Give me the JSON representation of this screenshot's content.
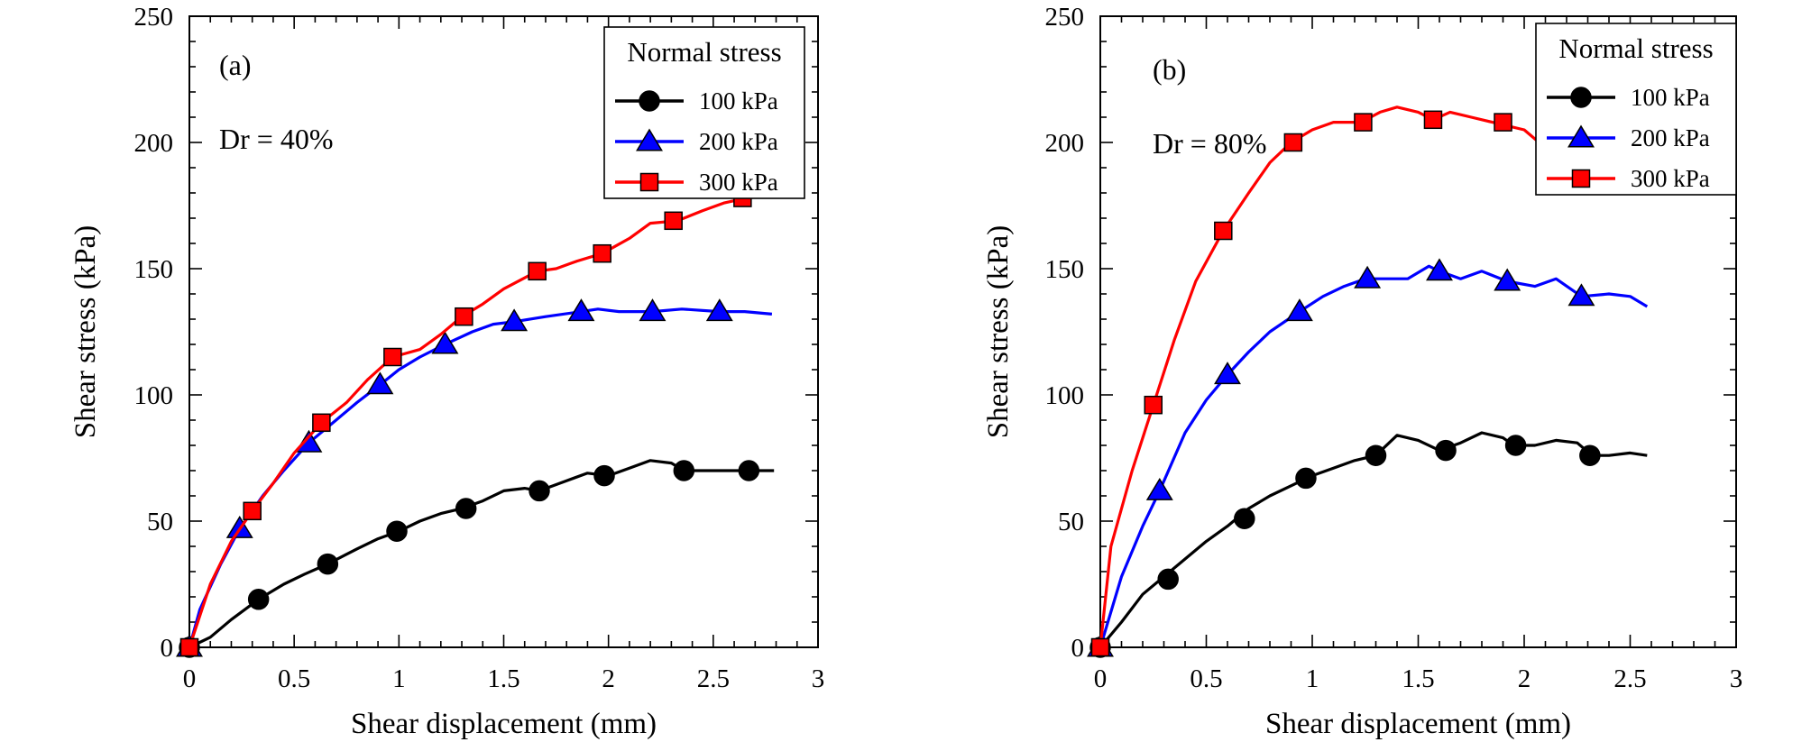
{
  "chart_data": [
    {
      "type": "line",
      "panel_label": "(a)",
      "annotation": "Dr = 40%",
      "xlabel": "Shear displacement (mm)",
      "ylabel": "Shear stress (kPa)",
      "xlim": [
        0,
        3
      ],
      "ylim": [
        0,
        250
      ],
      "xticks": [
        0,
        0.5,
        1,
        1.5,
        2,
        2.5,
        3
      ],
      "xtick_labels": [
        "0",
        "0.5",
        "1",
        "1.5",
        "2",
        "2.5",
        "3"
      ],
      "yticks": [
        0,
        50,
        100,
        150,
        200,
        250
      ],
      "ytick_labels": [
        "0",
        "50",
        "100",
        "150",
        "200",
        "250"
      ],
      "legend": {
        "title": "Normal stress",
        "placement": "top-right"
      },
      "series": [
        {
          "name": "100 kPa",
          "color": "#000000",
          "marker": "circle",
          "line": [
            [
              0,
              0
            ],
            [
              0.1,
              4
            ],
            [
              0.2,
              11
            ],
            [
              0.33,
              19
            ],
            [
              0.45,
              25
            ],
            [
              0.55,
              29
            ],
            [
              0.66,
              33
            ],
            [
              0.8,
              39
            ],
            [
              0.9,
              43
            ],
            [
              1.0,
              46
            ],
            [
              1.1,
              50
            ],
            [
              1.2,
              53
            ],
            [
              1.3,
              55
            ],
            [
              1.4,
              58
            ],
            [
              1.5,
              62
            ],
            [
              1.6,
              63
            ],
            [
              1.67,
              62
            ],
            [
              1.8,
              66
            ],
            [
              1.9,
              69
            ],
            [
              2.0,
              68
            ],
            [
              2.1,
              71
            ],
            [
              2.2,
              74
            ],
            [
              2.3,
              73
            ],
            [
              2.36,
              70
            ],
            [
              2.45,
              70
            ],
            [
              2.55,
              70
            ],
            [
              2.67,
              70
            ],
            [
              2.79,
              70
            ]
          ],
          "markers": [
            [
              0,
              0
            ],
            [
              0.33,
              19
            ],
            [
              0.66,
              33
            ],
            [
              0.99,
              46
            ],
            [
              1.32,
              55
            ],
            [
              1.67,
              62
            ],
            [
              1.98,
              68
            ],
            [
              2.36,
              70
            ],
            [
              2.67,
              70
            ]
          ]
        },
        {
          "name": "200 kPa",
          "color": "#0000ff",
          "marker": "triangle",
          "line": [
            [
              0,
              0
            ],
            [
              0.05,
              15
            ],
            [
              0.15,
              33
            ],
            [
              0.24,
              47
            ],
            [
              0.35,
              60
            ],
            [
              0.45,
              70
            ],
            [
              0.57,
              81
            ],
            [
              0.7,
              90
            ],
            [
              0.8,
              97
            ],
            [
              0.91,
              104
            ],
            [
              1.0,
              110
            ],
            [
              1.1,
              115
            ],
            [
              1.22,
              120
            ],
            [
              1.35,
              125
            ],
            [
              1.45,
              128
            ],
            [
              1.55,
              129
            ],
            [
              1.7,
              131
            ],
            [
              1.87,
              133
            ],
            [
              1.95,
              134
            ],
            [
              2.05,
              133
            ],
            [
              2.21,
              133
            ],
            [
              2.35,
              134
            ],
            [
              2.53,
              133
            ],
            [
              2.65,
              133
            ],
            [
              2.78,
              132
            ]
          ],
          "markers": [
            [
              0,
              0
            ],
            [
              0.24,
              47
            ],
            [
              0.57,
              81
            ],
            [
              0.91,
              104
            ],
            [
              1.22,
              120
            ],
            [
              1.55,
              129
            ],
            [
              1.87,
              133
            ],
            [
              2.21,
              133
            ],
            [
              2.53,
              133
            ]
          ]
        },
        {
          "name": "300 kPa",
          "color": "#ff0000",
          "marker": "square",
          "line": [
            [
              0,
              0
            ],
            [
              0.1,
              25
            ],
            [
              0.2,
              42
            ],
            [
              0.3,
              54
            ],
            [
              0.4,
              65
            ],
            [
              0.5,
              77
            ],
            [
              0.63,
              89
            ],
            [
              0.75,
              97
            ],
            [
              0.85,
              106
            ],
            [
              0.97,
              115
            ],
            [
              1.1,
              118
            ],
            [
              1.2,
              124
            ],
            [
              1.3,
              131
            ],
            [
              1.4,
              136
            ],
            [
              1.5,
              142
            ],
            [
              1.66,
              149
            ],
            [
              1.75,
              150
            ],
            [
              1.85,
              153
            ],
            [
              1.97,
              156
            ],
            [
              2.1,
              162
            ],
            [
              2.2,
              168
            ],
            [
              2.33,
              169
            ],
            [
              2.45,
              173
            ],
            [
              2.55,
              176
            ],
            [
              2.66,
              178
            ],
            [
              2.78,
              179
            ]
          ],
          "markers": [
            [
              0,
              0
            ],
            [
              0.3,
              54
            ],
            [
              0.63,
              89
            ],
            [
              0.97,
              115
            ],
            [
              1.31,
              131
            ],
            [
              1.66,
              149
            ],
            [
              1.97,
              156
            ],
            [
              2.31,
              169
            ],
            [
              2.64,
              178
            ]
          ]
        }
      ]
    },
    {
      "type": "line",
      "panel_label": "(b)",
      "annotation": "Dr = 80%",
      "xlabel": "Shear displacement (mm)",
      "ylabel": "Shear stress (kPa)",
      "xlim": [
        0,
        3
      ],
      "ylim": [
        0,
        250
      ],
      "xticks": [
        0,
        0.5,
        1,
        1.5,
        2,
        2.5,
        3
      ],
      "xtick_labels": [
        "0",
        "0.5",
        "1",
        "1.5",
        "2",
        "2.5",
        "3"
      ],
      "yticks": [
        0,
        50,
        100,
        150,
        200,
        250
      ],
      "ytick_labels": [
        "0",
        "50",
        "100",
        "150",
        "200",
        "250"
      ],
      "legend": {
        "title": "Normal stress",
        "placement": "top-right"
      },
      "series": [
        {
          "name": "100 kPa",
          "color": "#000000",
          "marker": "circle",
          "line": [
            [
              0,
              0
            ],
            [
              0.1,
              10
            ],
            [
              0.2,
              21
            ],
            [
              0.3,
              28
            ],
            [
              0.4,
              35
            ],
            [
              0.5,
              42
            ],
            [
              0.6,
              48
            ],
            [
              0.7,
              55
            ],
            [
              0.8,
              60
            ],
            [
              0.9,
              64
            ],
            [
              1.0,
              68
            ],
            [
              1.1,
              71
            ],
            [
              1.2,
              74
            ],
            [
              1.3,
              76
            ],
            [
              1.4,
              84
            ],
            [
              1.5,
              82
            ],
            [
              1.6,
              78
            ],
            [
              1.7,
              81
            ],
            [
              1.8,
              85
            ],
            [
              1.9,
              83
            ],
            [
              1.95,
              80
            ],
            [
              2.05,
              80
            ],
            [
              2.15,
              82
            ],
            [
              2.25,
              81
            ],
            [
              2.32,
              76
            ],
            [
              2.4,
              76
            ],
            [
              2.5,
              77
            ],
            [
              2.58,
              76
            ]
          ],
          "markers": [
            [
              0,
              0
            ],
            [
              0.32,
              27
            ],
            [
              0.68,
              51
            ],
            [
              0.97,
              67
            ],
            [
              1.3,
              76
            ],
            [
              1.63,
              78
            ],
            [
              1.96,
              80
            ],
            [
              2.31,
              76
            ]
          ]
        },
        {
          "name": "200 kPa",
          "color": "#0000ff",
          "marker": "triangle",
          "line": [
            [
              0,
              0
            ],
            [
              0.1,
              28
            ],
            [
              0.2,
              48
            ],
            [
              0.28,
              62
            ],
            [
              0.4,
              85
            ],
            [
              0.5,
              98
            ],
            [
              0.6,
              108
            ],
            [
              0.7,
              117
            ],
            [
              0.8,
              125
            ],
            [
              0.94,
              133
            ],
            [
              1.05,
              139
            ],
            [
              1.15,
              143
            ],
            [
              1.25,
              146
            ],
            [
              1.35,
              146
            ],
            [
              1.45,
              146
            ],
            [
              1.55,
              151
            ],
            [
              1.6,
              149
            ],
            [
              1.7,
              146
            ],
            [
              1.8,
              149
            ],
            [
              1.92,
              145
            ],
            [
              2.05,
              143
            ],
            [
              2.15,
              146
            ],
            [
              2.27,
              139
            ],
            [
              2.4,
              140
            ],
            [
              2.5,
              139
            ],
            [
              2.58,
              135
            ]
          ],
          "markers": [
            [
              0,
              0
            ],
            [
              0.28,
              62
            ],
            [
              0.6,
              108
            ],
            [
              0.94,
              133
            ],
            [
              1.26,
              146
            ],
            [
              1.6,
              149
            ],
            [
              1.92,
              145
            ],
            [
              2.27,
              139
            ]
          ]
        },
        {
          "name": "300 kPa",
          "color": "#ff0000",
          "marker": "square",
          "line": [
            [
              0,
              0
            ],
            [
              0.05,
              40
            ],
            [
              0.15,
              70
            ],
            [
              0.25,
              96
            ],
            [
              0.35,
              122
            ],
            [
              0.45,
              145
            ],
            [
              0.58,
              165
            ],
            [
              0.7,
              180
            ],
            [
              0.8,
              192
            ],
            [
              0.9,
              200
            ],
            [
              1.0,
              205
            ],
            [
              1.1,
              208
            ],
            [
              1.23,
              208
            ],
            [
              1.32,
              212
            ],
            [
              1.4,
              214
            ],
            [
              1.5,
              212
            ],
            [
              1.57,
              209
            ],
            [
              1.65,
              212
            ],
            [
              1.75,
              210
            ],
            [
              1.85,
              208
            ],
            [
              1.9,
              207
            ],
            [
              2.0,
              205
            ],
            [
              2.07,
              200
            ]
          ],
          "markers": [
            [
              0,
              0
            ],
            [
              0.25,
              96
            ],
            [
              0.58,
              165
            ],
            [
              0.91,
              200
            ],
            [
              1.24,
              208
            ],
            [
              1.57,
              209
            ],
            [
              1.9,
              208
            ]
          ]
        }
      ]
    }
  ]
}
